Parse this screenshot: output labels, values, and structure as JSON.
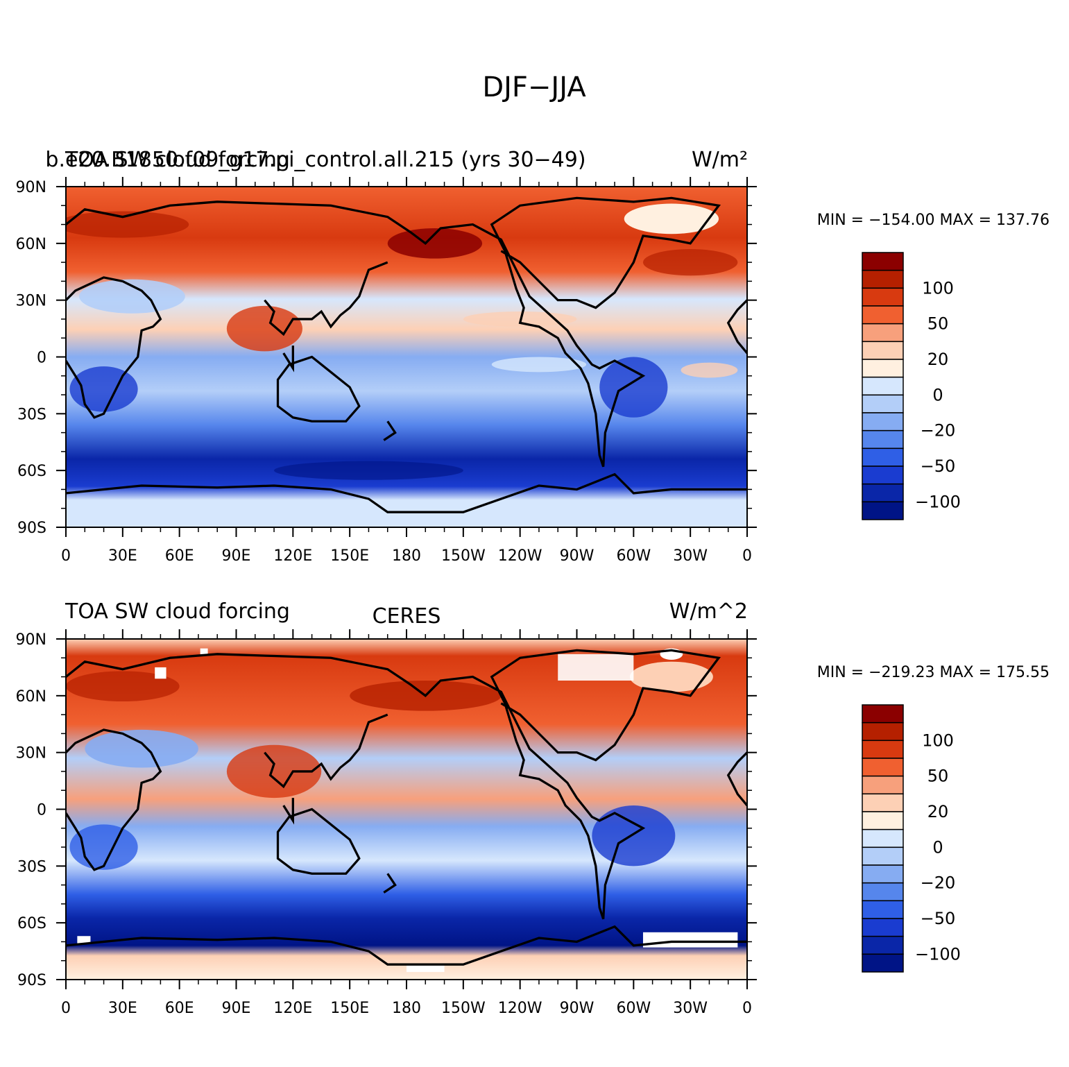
{
  "figure": {
    "title": "DJF−JJA"
  },
  "x_tick_labels": [
    "0",
    "30E",
    "60E",
    "90E",
    "120E",
    "150E",
    "180",
    "150W",
    "120W",
    "90W",
    "60W",
    "30W",
    "0"
  ],
  "y_tick_labels": [
    "90N",
    "60N",
    "30N",
    "0",
    "30S",
    "60S",
    "90S"
  ],
  "legend": {
    "labels": [
      "100",
      "50",
      "20",
      "0",
      "−20",
      "−50",
      "−100"
    ],
    "colors": [
      "#8b0000",
      "#b52000",
      "#d83a10",
      "#f06030",
      "#f7a07c",
      "#fdd0b5",
      "#fff0e0",
      "#d6e7fd",
      "#b3cef8",
      "#86acf2",
      "#5686ec",
      "#2f5fe6",
      "#1a3cd0",
      "#0a26a8",
      "#001486"
    ]
  },
  "panels": [
    {
      "title_left": "TOA SW cloud forcing",
      "title_center": "b.e20.B1850.f09_g17.pi_control.all.215 (yrs 30−49)",
      "units": "W/m²",
      "stats": "MIN = −154.00  MAX = 137.76"
    },
    {
      "title_left": "TOA SW cloud forcing",
      "title_center": "CERES",
      "units": "W/m^2",
      "stats": "MIN = −219.23  MAX = 175.55"
    }
  ]
}
